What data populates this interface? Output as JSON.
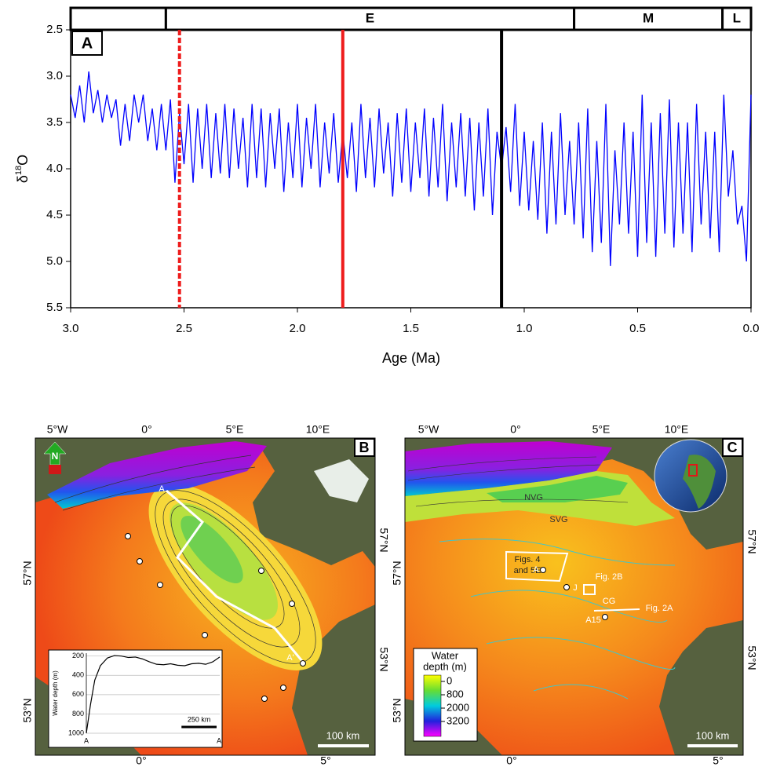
{
  "chart_data": [
    {
      "type": "line",
      "panel_label": "A",
      "xlabel": "Age (Ma)",
      "ylabel": {
        "base": "δ",
        "sup": "18",
        "tail": "O"
      },
      "x": [
        3,
        2.98,
        2.96,
        2.94,
        2.92,
        2.9,
        2.88,
        2.86,
        2.84,
        2.82,
        2.8,
        2.78,
        2.76,
        2.74,
        2.72,
        2.7,
        2.68,
        2.66,
        2.64,
        2.62,
        2.6,
        2.58,
        2.56,
        2.54,
        2.52,
        2.5,
        2.48,
        2.46,
        2.44,
        2.42,
        2.4,
        2.38,
        2.36,
        2.34,
        2.32,
        2.3,
        2.28,
        2.26,
        2.24,
        2.22,
        2.2,
        2.18,
        2.16,
        2.14,
        2.12,
        2.1,
        2.08,
        2.06,
        2.04,
        2.02,
        2,
        1.98,
        1.96,
        1.94,
        1.92,
        1.9,
        1.88,
        1.86,
        1.84,
        1.82,
        1.8,
        1.78,
        1.76,
        1.74,
        1.72,
        1.7,
        1.68,
        1.66,
        1.64,
        1.62,
        1.6,
        1.58,
        1.56,
        1.54,
        1.52,
        1.5,
        1.48,
        1.46,
        1.44,
        1.42,
        1.4,
        1.38,
        1.36,
        1.34,
        1.32,
        1.3,
        1.28,
        1.26,
        1.24,
        1.22,
        1.2,
        1.18,
        1.16,
        1.14,
        1.12,
        1.1,
        1.08,
        1.06,
        1.04,
        1.02,
        1,
        0.98,
        0.96,
        0.94,
        0.92,
        0.9,
        0.88,
        0.86,
        0.84,
        0.82,
        0.8,
        0.78,
        0.76,
        0.74,
        0.72,
        0.7,
        0.68,
        0.66,
        0.64,
        0.62,
        0.6,
        0.58,
        0.56,
        0.54,
        0.52,
        0.5,
        0.48,
        0.46,
        0.44,
        0.42,
        0.4,
        0.38,
        0.36,
        0.34,
        0.32,
        0.3,
        0.28,
        0.26,
        0.24,
        0.22,
        0.2,
        0.18,
        0.16,
        0.14,
        0.12,
        0.1,
        0.08,
        0.06,
        0.04,
        0.02,
        0
      ],
      "values": [
        3.2,
        3.45,
        3.1,
        3.5,
        2.95,
        3.4,
        3.15,
        3.5,
        3.2,
        3.45,
        3.25,
        3.75,
        3.3,
        3.7,
        3.2,
        3.5,
        3.2,
        3.7,
        3.35,
        3.8,
        3.3,
        3.8,
        3.25,
        4.15,
        3.4,
        3.95,
        3.3,
        4.15,
        3.35,
        4.0,
        3.3,
        4.1,
        3.4,
        4.05,
        3.3,
        4.1,
        3.35,
        4.0,
        3.45,
        4.2,
        3.3,
        4.1,
        3.35,
        4.2,
        3.4,
        4.0,
        3.35,
        4.25,
        3.5,
        4.1,
        3.3,
        4.2,
        3.45,
        4.0,
        3.3,
        4.2,
        3.5,
        4.05,
        3.4,
        4.15,
        3.6,
        4.1,
        3.5,
        4.25,
        3.3,
        4.1,
        3.45,
        4.2,
        3.35,
        4.05,
        3.5,
        4.3,
        3.4,
        4.15,
        3.35,
        4.25,
        3.5,
        4.1,
        3.35,
        4.3,
        3.45,
        4.2,
        3.3,
        4.35,
        3.5,
        4.2,
        3.4,
        4.3,
        3.45,
        4.45,
        3.5,
        4.3,
        3.35,
        4.5,
        3.6,
        4.0,
        3.55,
        4.25,
        3.3,
        4.4,
        3.6,
        4.45,
        3.7,
        4.55,
        3.5,
        4.7,
        3.6,
        4.6,
        3.4,
        4.5,
        3.7,
        4.6,
        3.5,
        4.75,
        3.35,
        4.9,
        3.7,
        4.8,
        3.3,
        5.05,
        3.8,
        4.6,
        3.5,
        4.7,
        3.6,
        4.95,
        3.2,
        4.8,
        3.5,
        4.95,
        3.4,
        4.7,
        3.25,
        4.85,
        3.5,
        4.7,
        3.5,
        4.9,
        3.3,
        4.6,
        3.6,
        4.75,
        3.6,
        4.9,
        3.2,
        4.3,
        3.8,
        4.6,
        4.4,
        5.0,
        3.2
      ],
      "color": "#0000ff",
      "xlim": [
        3,
        0
      ],
      "ylim": [
        5.5,
        2.5
      ],
      "xticks": [
        {
          "value": 3,
          "label": "3.0"
        },
        2.5,
        {
          "value": 2,
          "label": "2.0"
        },
        1.5,
        {
          "value": 1,
          "label": "1.0"
        },
        0.5,
        {
          "value": 0,
          "label": "0.0"
        }
      ],
      "yticks": [
        2.5,
        {
          "value": 3,
          "label": "3.0"
        },
        3.5,
        {
          "value": 4,
          "label": "4.0"
        },
        4.5,
        {
          "value": 5,
          "label": "5.0"
        },
        5.5
      ],
      "epochs": [
        {
          "from": 3,
          "to": 2.58
        },
        {
          "label": "E",
          "from": 2.58,
          "to": 0.78
        },
        {
          "label": "M",
          "from": 0.78,
          "to": 0.126
        },
        {
          "label": "L",
          "from": 0.126,
          "to": 0
        }
      ],
      "markers": [
        {
          "x": 2.52,
          "color": "#ee1c1c",
          "dashed": true
        },
        {
          "x": 1.8,
          "color": "#ee1c1c",
          "dashed": false
        },
        {
          "x": 1.1,
          "color": "#000000",
          "dashed": false
        }
      ]
    },
    {
      "type": "line",
      "ylabel": "Water depth (m)",
      "x": [
        0,
        30,
        60,
        100,
        150,
        200,
        250,
        300,
        350,
        400,
        450,
        500,
        550,
        600,
        650,
        700,
        750,
        800,
        850,
        900,
        950
      ],
      "values": [
        1000,
        700,
        450,
        300,
        220,
        195,
        200,
        215,
        210,
        230,
        260,
        285,
        290,
        280,
        295,
        300,
        280,
        275,
        285,
        260,
        210
      ],
      "color": "#000000",
      "xlim": [
        0,
        950
      ],
      "ylim": [
        1000,
        170
      ],
      "yticks": [
        200,
        400,
        600,
        800,
        1000
      ],
      "grid": true,
      "end_labels": [
        "A",
        "A'"
      ],
      "scalebar": {
        "length": 250,
        "label": "250 km"
      }
    }
  ],
  "maps": {
    "b": {
      "panel_label": "B",
      "north": "N",
      "top_labels": [
        "5°W",
        "0°",
        "5°E",
        "10°E"
      ],
      "bottom_labels": [
        "0°",
        "5°"
      ],
      "left_labels": [
        "57°N",
        "53°N"
      ],
      "right_labels": [
        "57°N",
        "53°N"
      ],
      "section_labels": [
        "A",
        "A'"
      ],
      "scalebar": "100 km"
    },
    "c": {
      "panel_label": "C",
      "top_labels": [
        "5°W",
        "0°",
        "5°E",
        "10°E"
      ],
      "bottom_labels": [
        "0°",
        "5°"
      ],
      "left_labels": [
        "57°N",
        "53°N"
      ],
      "right_labels": [
        "57°N",
        "53°N"
      ],
      "features": [
        "NVG",
        "SVG",
        "Figs. 4",
        "and 5E",
        "A",
        "J",
        "Fig. 2B",
        "CG",
        "Fig. 2A",
        "A15"
      ],
      "legend": {
        "title": [
          "Water",
          "depth (m)"
        ],
        "ticks": [
          0,
          800,
          2000,
          3200
        ],
        "colors": [
          "#ffff00",
          "#66dd33",
          "#00ccdd",
          "#2222dd",
          "#ff00ff"
        ]
      },
      "scalebar": "100 km"
    }
  }
}
